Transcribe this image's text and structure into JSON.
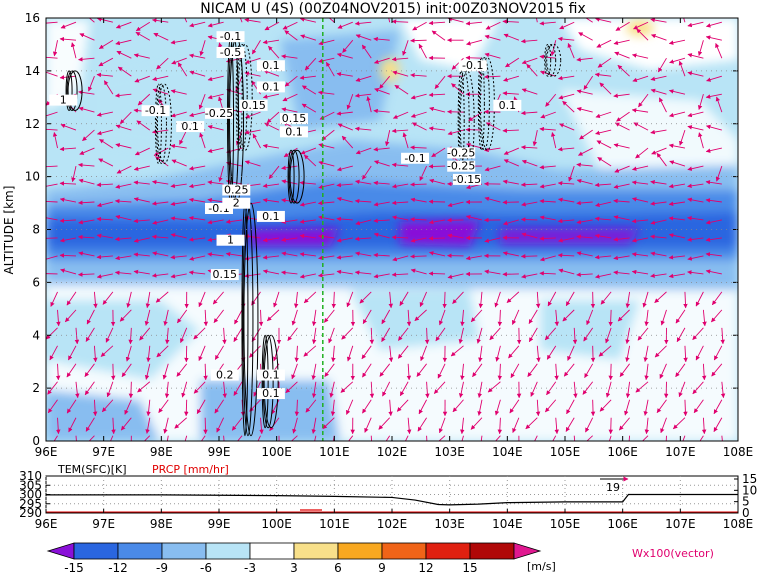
{
  "chart_data": {
    "type": "heatmap",
    "title": "NICAM U (4S) (00Z04NOV2015) init:00Z03NOV2015 fix",
    "ylabel": "ALTITUDE [km]",
    "x_ticks": [
      "96E",
      "97E",
      "98E",
      "99E",
      "100E",
      "101E",
      "102E",
      "103E",
      "104E",
      "105E",
      "106E",
      "107E",
      "108E"
    ],
    "y_ticks": [
      "0",
      "2",
      "4",
      "6",
      "8",
      "10",
      "12",
      "14",
      "16"
    ],
    "xlim": [
      96,
      108
    ],
    "ylim": [
      0,
      16
    ],
    "marker_longitude": 100.8,
    "colorbar": {
      "ticks": [
        "-15",
        "-12",
        "-9",
        "-6",
        "-3",
        "3",
        "6",
        "9",
        "12",
        "15"
      ],
      "unit": "[m/s]",
      "colors": [
        "#8a10d8",
        "#2a66e0",
        "#4a8ae8",
        "#88bdf0",
        "#b8e4f6",
        "#ffffff",
        "#f8e08a",
        "#f8a820",
        "#f06418",
        "#e02010",
        "#b00808",
        "#e01890"
      ]
    },
    "vector_label": "Wx100(vector)",
    "jet_core": {
      "altitude_km": 8,
      "u_ms": -15
    },
    "contour_labels": [
      {
        "text": "-0.1",
        "lon": 99.2,
        "alt": 15.2
      },
      {
        "text": "-0.5",
        "lon": 99.2,
        "alt": 14.6
      },
      {
        "text": "0.1",
        "lon": 99.9,
        "alt": 14.1
      },
      {
        "text": "0.1",
        "lon": 99.9,
        "alt": 13.3
      },
      {
        "text": "1",
        "lon": 96.3,
        "alt": 12.8
      },
      {
        "text": "-0.1",
        "lon": 97.9,
        "alt": 12.4
      },
      {
        "text": "0.1",
        "lon": 98.5,
        "alt": 11.8
      },
      {
        "text": "-0.25",
        "lon": 99.0,
        "alt": 12.3
      },
      {
        "text": "0.15",
        "lon": 99.6,
        "alt": 12.6
      },
      {
        "text": "0.15",
        "lon": 100.3,
        "alt": 12.1
      },
      {
        "text": "0.1",
        "lon": 100.3,
        "alt": 11.6
      },
      {
        "text": "0.25",
        "lon": 99.3,
        "alt": 9.4
      },
      {
        "text": "-0.1",
        "lon": 99.0,
        "alt": 8.7
      },
      {
        "text": "2",
        "lon": 99.3,
        "alt": 8.9
      },
      {
        "text": "0.1",
        "lon": 99.9,
        "alt": 8.4
      },
      {
        "text": "1",
        "lon": 99.2,
        "alt": 7.5
      },
      {
        "text": "0.15",
        "lon": 99.1,
        "alt": 6.2
      },
      {
        "text": "0.2",
        "lon": 99.1,
        "alt": 2.4
      },
      {
        "text": "0.1",
        "lon": 99.9,
        "alt": 2.4
      },
      {
        "text": "0.1",
        "lon": 99.9,
        "alt": 1.7
      },
      {
        "text": "-0.1",
        "lon": 103.4,
        "alt": 14.1
      },
      {
        "text": "0.1",
        "lon": 104.0,
        "alt": 12.6
      },
      {
        "text": "-0.1",
        "lon": 102.4,
        "alt": 10.6
      },
      {
        "text": "-0.25",
        "lon": 103.2,
        "alt": 10.8
      },
      {
        "text": "-0.25",
        "lon": 103.2,
        "alt": 10.3
      },
      {
        "text": "-0.15",
        "lon": 103.3,
        "alt": 9.8
      }
    ],
    "lower_panel": {
      "tem_label": "TEM(SFC)[K]",
      "prcp_label": "PRCP [mm/hr]",
      "tem_ticks": [
        "310",
        "305",
        "300",
        "295",
        "290"
      ],
      "prcp_ticks": [
        "15",
        "10",
        "5",
        "0"
      ],
      "x_ticks": [
        "96E",
        "97E",
        "98E",
        "99E",
        "100E",
        "101E",
        "102E",
        "103E",
        "104E",
        "105E",
        "106E",
        "107E",
        "108E"
      ],
      "annotation": "19",
      "tem_series": {
        "lon": [
          96,
          97,
          98,
          99,
          100,
          101,
          102,
          102.4,
          102.8,
          103,
          103.5,
          104,
          105,
          106,
          106.1,
          108
        ],
        "temp": [
          299.8,
          299.8,
          299.8,
          299.6,
          299.4,
          299.0,
          298.4,
          297.0,
          294.6,
          294.4,
          294.8,
          295.6,
          296.0,
          296.0,
          300,
          300
        ]
      }
    }
  }
}
